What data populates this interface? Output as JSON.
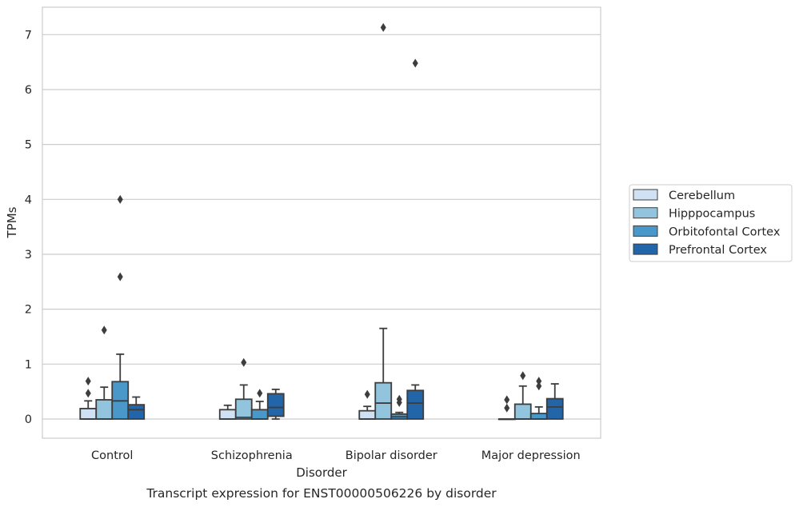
{
  "chart_data": {
    "type": "box",
    "caption": "Transcript expression for ENST00000506226 by disorder",
    "xlabel": "Disorder",
    "ylabel": "TPMs",
    "ylim": [
      -0.35,
      7.5
    ],
    "yticks": [
      0,
      1,
      2,
      3,
      4,
      5,
      6,
      7
    ],
    "grid": "horizontal",
    "legend_position": "right",
    "categories": [
      "Control",
      "Schizophrenia",
      "Bipolar disorder",
      "Major depression"
    ],
    "series": [
      {
        "name": "Cerebellum",
        "color": "#cfe1f2",
        "boxes": [
          {
            "whisker_low": 0,
            "q1": 0,
            "median": 0,
            "q3": 0.19,
            "whisker_high": 0.33,
            "outliers": [
              0.47,
              0.69
            ]
          },
          {
            "whisker_low": 0,
            "q1": 0,
            "median": 0,
            "q3": 0.17,
            "whisker_high": 0.25,
            "outliers": []
          },
          {
            "whisker_low": 0,
            "q1": 0,
            "median": 0,
            "q3": 0.15,
            "whisker_high": 0.23,
            "outliers": [
              0.45
            ]
          },
          {
            "whisker_low": 0,
            "q1": 0,
            "median": 0,
            "q3": 0,
            "whisker_high": 0,
            "outliers": [
              0.2,
              0.35
            ]
          }
        ]
      },
      {
        "name": "Hipppocampus",
        "color": "#93c4de",
        "boxes": [
          {
            "whisker_low": 0,
            "q1": 0,
            "median": 0,
            "q3": 0.35,
            "whisker_high": 0.58,
            "outliers": [
              1.62
            ]
          },
          {
            "whisker_low": 0,
            "q1": 0,
            "median": 0.03,
            "q3": 0.36,
            "whisker_high": 0.62,
            "outliers": [
              1.03
            ]
          },
          {
            "whisker_low": 0,
            "q1": 0,
            "median": 0.29,
            "q3": 0.66,
            "whisker_high": 1.65,
            "outliers": [
              7.13
            ]
          },
          {
            "whisker_low": 0,
            "q1": 0,
            "median": 0,
            "q3": 0.27,
            "whisker_high": 0.6,
            "outliers": [
              0.79
            ]
          }
        ]
      },
      {
        "name": "Orbitofontal Cortex",
        "color": "#4a98c9",
        "boxes": [
          {
            "whisker_low": 0,
            "q1": 0,
            "median": 0.33,
            "q3": 0.68,
            "whisker_high": 1.18,
            "outliers": [
              2.59,
              4.0
            ]
          },
          {
            "whisker_low": 0,
            "q1": 0,
            "median": 0,
            "q3": 0.17,
            "whisker_high": 0.32,
            "outliers": [
              0.47
            ]
          },
          {
            "whisker_low": 0,
            "q1": 0,
            "median": 0.04,
            "q3": 0.09,
            "whisker_high": 0.12,
            "outliers": [
              0.3,
              0.36
            ]
          },
          {
            "whisker_low": 0,
            "q1": 0,
            "median": 0,
            "q3": 0.1,
            "whisker_high": 0.22,
            "outliers": [
              0.6,
              0.69
            ]
          }
        ]
      },
      {
        "name": "Prefrontal Cortex",
        "color": "#2265a9",
        "boxes": [
          {
            "whisker_low": 0,
            "q1": 0,
            "median": 0.17,
            "q3": 0.26,
            "whisker_high": 0.4,
            "outliers": []
          },
          {
            "whisker_low": 0,
            "q1": 0.05,
            "median": 0.21,
            "q3": 0.46,
            "whisker_high": 0.54,
            "outliers": []
          },
          {
            "whisker_low": 0,
            "q1": 0,
            "median": 0.29,
            "q3": 0.52,
            "whisker_high": 0.62,
            "outliers": [
              6.48
            ]
          },
          {
            "whisker_low": 0,
            "q1": 0,
            "median": 0.22,
            "q3": 0.37,
            "whisker_high": 0.64,
            "outliers": []
          }
        ]
      }
    ]
  }
}
